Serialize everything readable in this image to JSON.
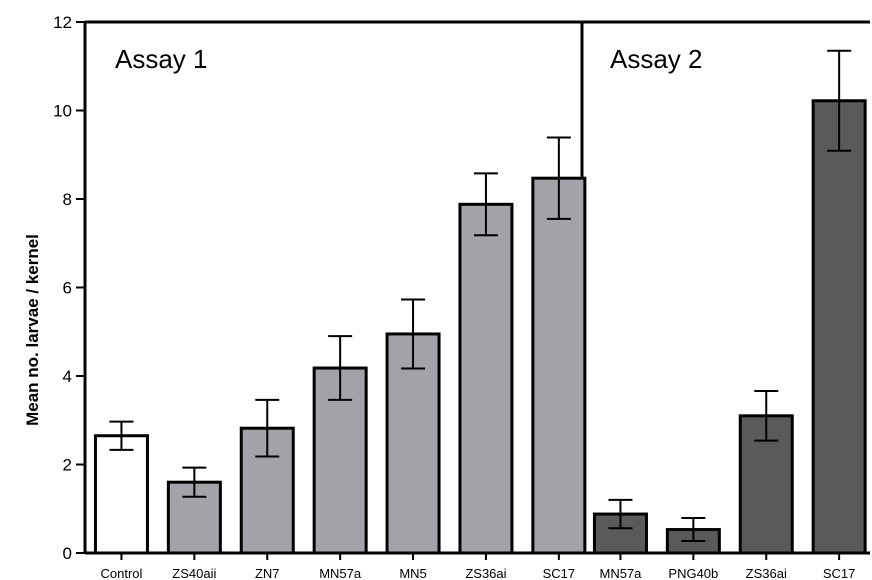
{
  "chart_data": {
    "type": "bar",
    "ylabel": "Mean no. larvae / kernel",
    "xlabel": "",
    "ylim": [
      0,
      12
    ],
    "yticks": [
      0,
      2,
      4,
      6,
      8,
      10,
      12
    ],
    "grid": false,
    "panels": [
      {
        "label": "Assay 1",
        "categories": [
          "Control",
          "ZS40aii",
          "ZN7",
          "MN57a",
          "MN5",
          "ZS36ai",
          "SC17"
        ],
        "values": [
          2.65,
          1.6,
          2.82,
          4.18,
          4.95,
          7.88,
          8.47
        ],
        "errors": [
          0.32,
          0.33,
          0.64,
          0.72,
          0.78,
          0.7,
          0.92
        ],
        "colors": [
          "#ffffff",
          "#a2a2a8",
          "#a2a2a8",
          "#a2a2a8",
          "#a2a2a8",
          "#a2a2a8",
          "#a2a2a8"
        ]
      },
      {
        "label": "Assay 2",
        "categories": [
          "MN57a",
          "PNG40b",
          "ZS36ai",
          "SC17"
        ],
        "values": [
          0.88,
          0.53,
          3.1,
          10.22
        ],
        "errors": [
          0.32,
          0.26,
          0.56,
          1.13
        ],
        "colors": [
          "#5a5a5a",
          "#5a5a5a",
          "#5a5a5a",
          "#5a5a5a"
        ]
      }
    ]
  }
}
